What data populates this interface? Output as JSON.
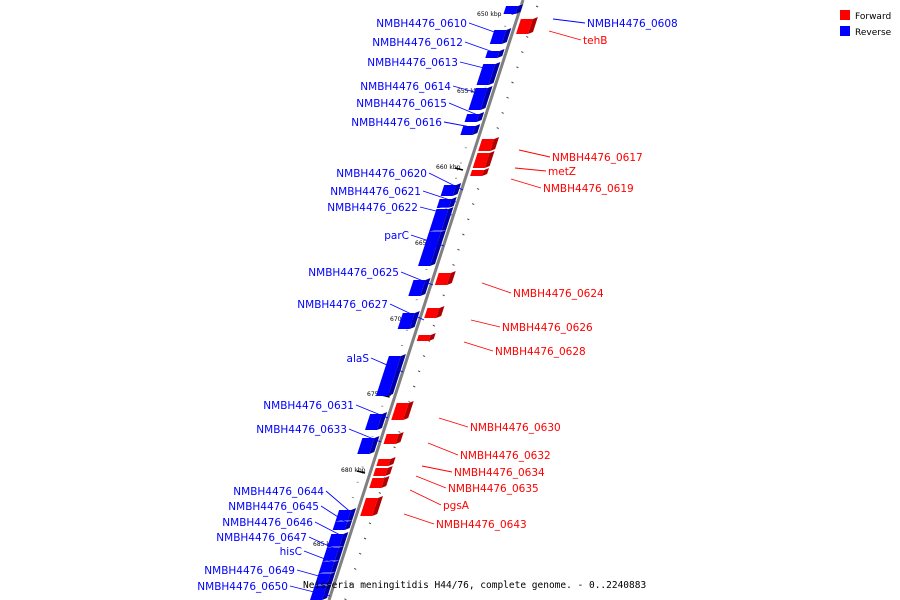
{
  "caption": "Neisseria meningitidis H44/76, complete genome. - 0..2240883",
  "legend": [
    {
      "label": "Forward",
      "color": "#ff0000"
    },
    {
      "label": "Reverse",
      "color": "#0000ff"
    }
  ],
  "colors": {
    "forward": "#ff0000",
    "reverse": "#0000ff",
    "axis": "#808080"
  },
  "scale_ticks": [
    "650 kbp",
    "655 kbp",
    "660 kbp",
    "665 kbp",
    "670 kbp",
    "675 kbp",
    "680 kbp",
    "685 kbp"
  ],
  "reverse_genes": [
    "NMBH4476_0610",
    "NMBH4476_0612",
    "NMBH4476_0613",
    "NMBH4476_0614",
    "NMBH4476_0615",
    "NMBH4476_0616",
    "NMBH4476_0620",
    "NMBH4476_0621",
    "NMBH4476_0622",
    "parC",
    "NMBH4476_0625",
    "NMBH4476_0627",
    "alaS",
    "NMBH4476_0631",
    "NMBH4476_0633",
    "NMBH4476_0644",
    "NMBH4476_0645",
    "NMBH4476_0646",
    "NMBH4476_0647",
    "hisC",
    "NMBH4476_0649",
    "NMBH4476_0650"
  ],
  "right_reverse_genes": [
    "NMBH4476_0608"
  ],
  "forward_genes": [
    "tehB",
    "NMBH4476_0617",
    "metZ",
    "NMBH4476_0619",
    "NMBH4476_0624",
    "NMBH4476_0626",
    "NMBH4476_0628",
    "NMBH4476_0630",
    "NMBH4476_0632",
    "NMBH4476_0634",
    "NMBH4476_0635",
    "pgsA",
    "NMBH4476_0643"
  ]
}
